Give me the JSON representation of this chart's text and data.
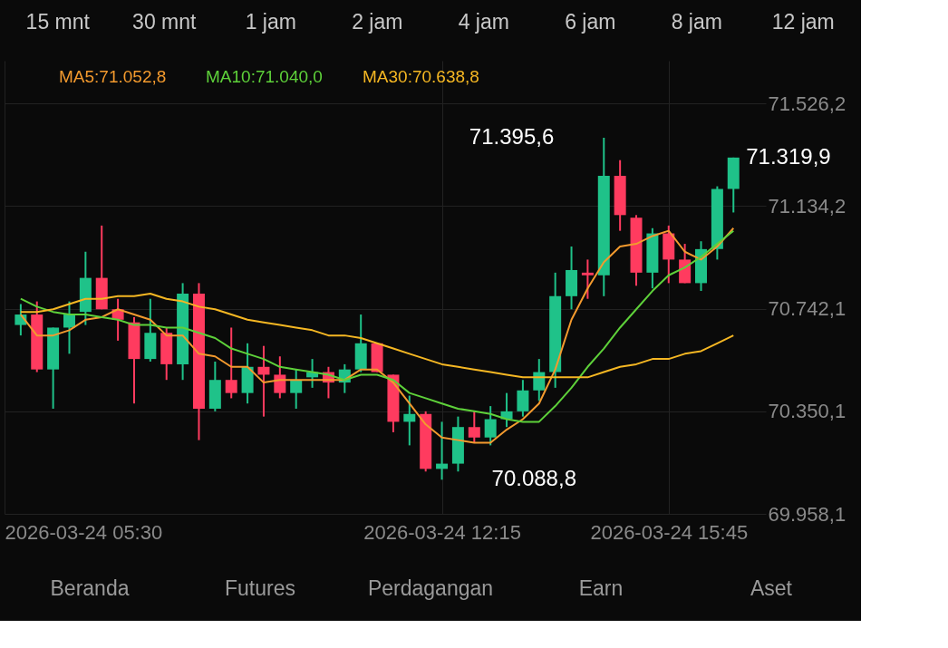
{
  "chart_data": {
    "type": "candlestick",
    "x": [
      "2026-03-24T05:45",
      "2026-03-24T06:00",
      "2026-03-24T06:15",
      "2026-03-24T06:30",
      "2026-03-24T06:45",
      "2026-03-24T07:00",
      "2026-03-24T07:15",
      "2026-03-24T07:30",
      "2026-03-24T07:45",
      "2026-03-24T08:00",
      "2026-03-24T08:15",
      "2026-03-24T08:30",
      "2026-03-24T08:45",
      "2026-03-24T09:00",
      "2026-03-24T09:15",
      "2026-03-24T09:30",
      "2026-03-24T09:45",
      "2026-03-24T10:00",
      "2026-03-24T10:15",
      "2026-03-24T10:30",
      "2026-03-24T10:45",
      "2026-03-24T11:00",
      "2026-03-24T11:15",
      "2026-03-24T11:30",
      "2026-03-24T11:45",
      "2026-03-24T12:00",
      "2026-03-24T12:15",
      "2026-03-24T12:30",
      "2026-03-24T12:45",
      "2026-03-24T13:00",
      "2026-03-24T13:15",
      "2026-03-24T13:30",
      "2026-03-24T13:45",
      "2026-03-24T14:00",
      "2026-03-24T14:15",
      "2026-03-24T14:30",
      "2026-03-24T14:45",
      "2026-03-24T15:00",
      "2026-03-24T15:15",
      "2026-03-24T15:30",
      "2026-03-24T15:45",
      "2026-03-24T16:00",
      "2026-03-24T16:15",
      "2026-03-24T16:30",
      "2026-03-24T16:45"
    ],
    "ohlc": [
      [
        70680,
        70760,
        70640,
        70720
      ],
      [
        70720,
        70770,
        70500,
        70510
      ],
      [
        70510,
        70670,
        70360,
        70670
      ],
      [
        70670,
        70770,
        70570,
        70720
      ],
      [
        70730,
        70960,
        70680,
        70860
      ],
      [
        70860,
        71060,
        70740,
        70740
      ],
      [
        70740,
        70780,
        70620,
        70700
      ],
      [
        70690,
        70710,
        70380,
        70550
      ],
      [
        70550,
        70780,
        70540,
        70650
      ],
      [
        70650,
        70670,
        70470,
        70530
      ],
      [
        70530,
        70840,
        70470,
        70800
      ],
      [
        70800,
        70840,
        70240,
        70360
      ],
      [
        70360,
        70540,
        70350,
        70470
      ],
      [
        70470,
        70670,
        70400,
        70420
      ],
      [
        70420,
        70610,
        70380,
        70520
      ],
      [
        70520,
        70600,
        70330,
        70490
      ],
      [
        70490,
        70560,
        70400,
        70420
      ],
      [
        70420,
        70510,
        70360,
        70470
      ],
      [
        70480,
        70550,
        70440,
        70500
      ],
      [
        70500,
        70520,
        70400,
        70460
      ],
      [
        70460,
        70530,
        70420,
        70510
      ],
      [
        70510,
        70720,
        70500,
        70610
      ],
      [
        70610,
        70610,
        70500,
        70500
      ],
      [
        70490,
        70490,
        70270,
        70310
      ],
      [
        70310,
        70410,
        70220,
        70340
      ],
      [
        70340,
        70350,
        70120,
        70130
      ],
      [
        70130,
        70310,
        70088.8,
        70150
      ],
      [
        70150,
        70330,
        70120,
        70290
      ],
      [
        70290,
        70350,
        70230,
        70250
      ],
      [
        70250,
        70370,
        70220,
        70320
      ],
      [
        70320,
        70420,
        70290,
        70350
      ],
      [
        70350,
        70470,
        70330,
        70430
      ],
      [
        70430,
        70550,
        70390,
        70500
      ],
      [
        70500,
        70880,
        70440,
        70790
      ],
      [
        70790,
        70980,
        70740,
        70890
      ],
      [
        70880,
        70930,
        70780,
        70870
      ],
      [
        70870,
        71395.6,
        70790,
        71250
      ],
      [
        71250,
        71310,
        71040,
        71100
      ],
      [
        71090,
        71100,
        70830,
        70880
      ],
      [
        70880,
        71050,
        70820,
        71030
      ],
      [
        71030,
        71060,
        70840,
        70930
      ],
      [
        70930,
        70990,
        70840,
        70840
      ],
      [
        70840,
        71000,
        70810,
        70970
      ],
      [
        70970,
        71210,
        70930,
        71200
      ],
      [
        71200,
        71320,
        71110,
        71319.9
      ]
    ],
    "colors": [
      "#1fc289",
      "#ff3b5f",
      "#1fc289",
      "#1fc289",
      "#1fc289",
      "#ff3b5f",
      "#ff3b5f",
      "#ff3b5f",
      "#1fc289",
      "#ff3b5f",
      "#1fc289",
      "#ff3b5f",
      "#1fc289",
      "#ff3b5f",
      "#1fc289",
      "#ff3b5f",
      "#ff3b5f",
      "#1fc289",
      "#1fc289",
      "#ff3b5f",
      "#1fc289",
      "#1fc289",
      "#ff3b5f",
      "#ff3b5f",
      "#1fc289",
      "#ff3b5f",
      "#1fc289",
      "#1fc289",
      "#ff3b5f",
      "#1fc289",
      "#1fc289",
      "#1fc289",
      "#1fc289",
      "#1fc289",
      "#1fc289",
      "#ff3b5f",
      "#1fc289",
      "#ff3b5f",
      "#ff3b5f",
      "#1fc289",
      "#ff3b5f",
      "#ff3b5f",
      "#1fc289",
      "#1fc289",
      "#1fc289"
    ],
    "series": [
      {
        "type": "line",
        "name": "MA5:71.052,8",
        "color": "#f39a2e",
        "values": [
          70720,
          70640,
          70640,
          70660,
          70700,
          70710,
          70740,
          70720,
          70700,
          70640,
          70640,
          70570,
          70560,
          70520,
          70520,
          70460,
          70470,
          70470,
          70470,
          70470,
          70470,
          70510,
          70510,
          70460,
          70380,
          70300,
          70250,
          70240,
          70230,
          70230,
          70280,
          70320,
          70380,
          70510,
          70700,
          70820,
          70920,
          70980,
          70990,
          71020,
          71040,
          70960,
          70930,
          70980,
          71050
        ]
      },
      {
        "type": "line",
        "name": "MA10:71.040,0",
        "color": "#5ed13a",
        "values": [
          70780,
          70750,
          70730,
          70720,
          70720,
          70710,
          70700,
          70680,
          70680,
          70670,
          70670,
          70650,
          70630,
          70590,
          70570,
          70550,
          70520,
          70510,
          70500,
          70490,
          70470,
          70490,
          70490,
          70470,
          70420,
          70400,
          70380,
          70360,
          70350,
          70340,
          70320,
          70310,
          70310,
          70370,
          70440,
          70520,
          70590,
          70670,
          70740,
          70810,
          70870,
          70900,
          70940,
          70990,
          71040
        ]
      },
      {
        "type": "line",
        "name": "MA30:70.638,8",
        "color": "#f5b723",
        "values": [
          70730,
          70730,
          70740,
          70760,
          70780,
          70780,
          70790,
          70790,
          70800,
          70780,
          70770,
          70750,
          70740,
          70720,
          70700,
          70690,
          70680,
          70670,
          70660,
          70640,
          70640,
          70630,
          70610,
          70590,
          70570,
          70550,
          70530,
          70520,
          70510,
          70500,
          70490,
          70480,
          70480,
          70480,
          70480,
          70480,
          70500,
          70520,
          70530,
          70550,
          70550,
          70570,
          70580,
          70610,
          70640
        ]
      }
    ],
    "xlim": [
      "2026-03-24T05:30",
      "2026-03-24T17:15"
    ],
    "xticks": [
      {
        "value": "2026-03-24T05:30",
        "label": "2026-03-24 05:30"
      },
      {
        "value": "2026-03-24T12:15",
        "label": "2026-03-24 12:15"
      },
      {
        "value": "2026-03-24T15:45",
        "label": "2026-03-24 15:45"
      }
    ],
    "ylim": [
      69958.1,
      71690
    ],
    "yticks": [
      {
        "value": 69958.1,
        "label": "69.958,1"
      },
      {
        "value": 70350.1,
        "label": "70.350,1"
      },
      {
        "value": 70742.1,
        "label": "70.742,1"
      },
      {
        "value": 71134.2,
        "label": "71.134,2"
      },
      {
        "value": 71526.2,
        "label": "71.526,2"
      }
    ],
    "grid": true,
    "legend": "top left",
    "annotations": [
      "15 mnt",
      "30 mnt",
      "1 jam",
      "2 jam",
      "4 jam",
      "6 jam",
      "8 jam",
      "12 jam",
      "Beranda",
      "Futures",
      "Perdagangan",
      "Earn",
      "Aset",
      {
        "text": "71.395,6",
        "x": "2026-03-24T14:45",
        "y": 71395.6
      },
      {
        "text": "70.088,8",
        "x": "2026-03-24T12:15",
        "y": 70088.8
      },
      {
        "text": "71.319,9",
        "x": "2026-03-24T16:45",
        "y": 71319.9
      }
    ]
  }
}
